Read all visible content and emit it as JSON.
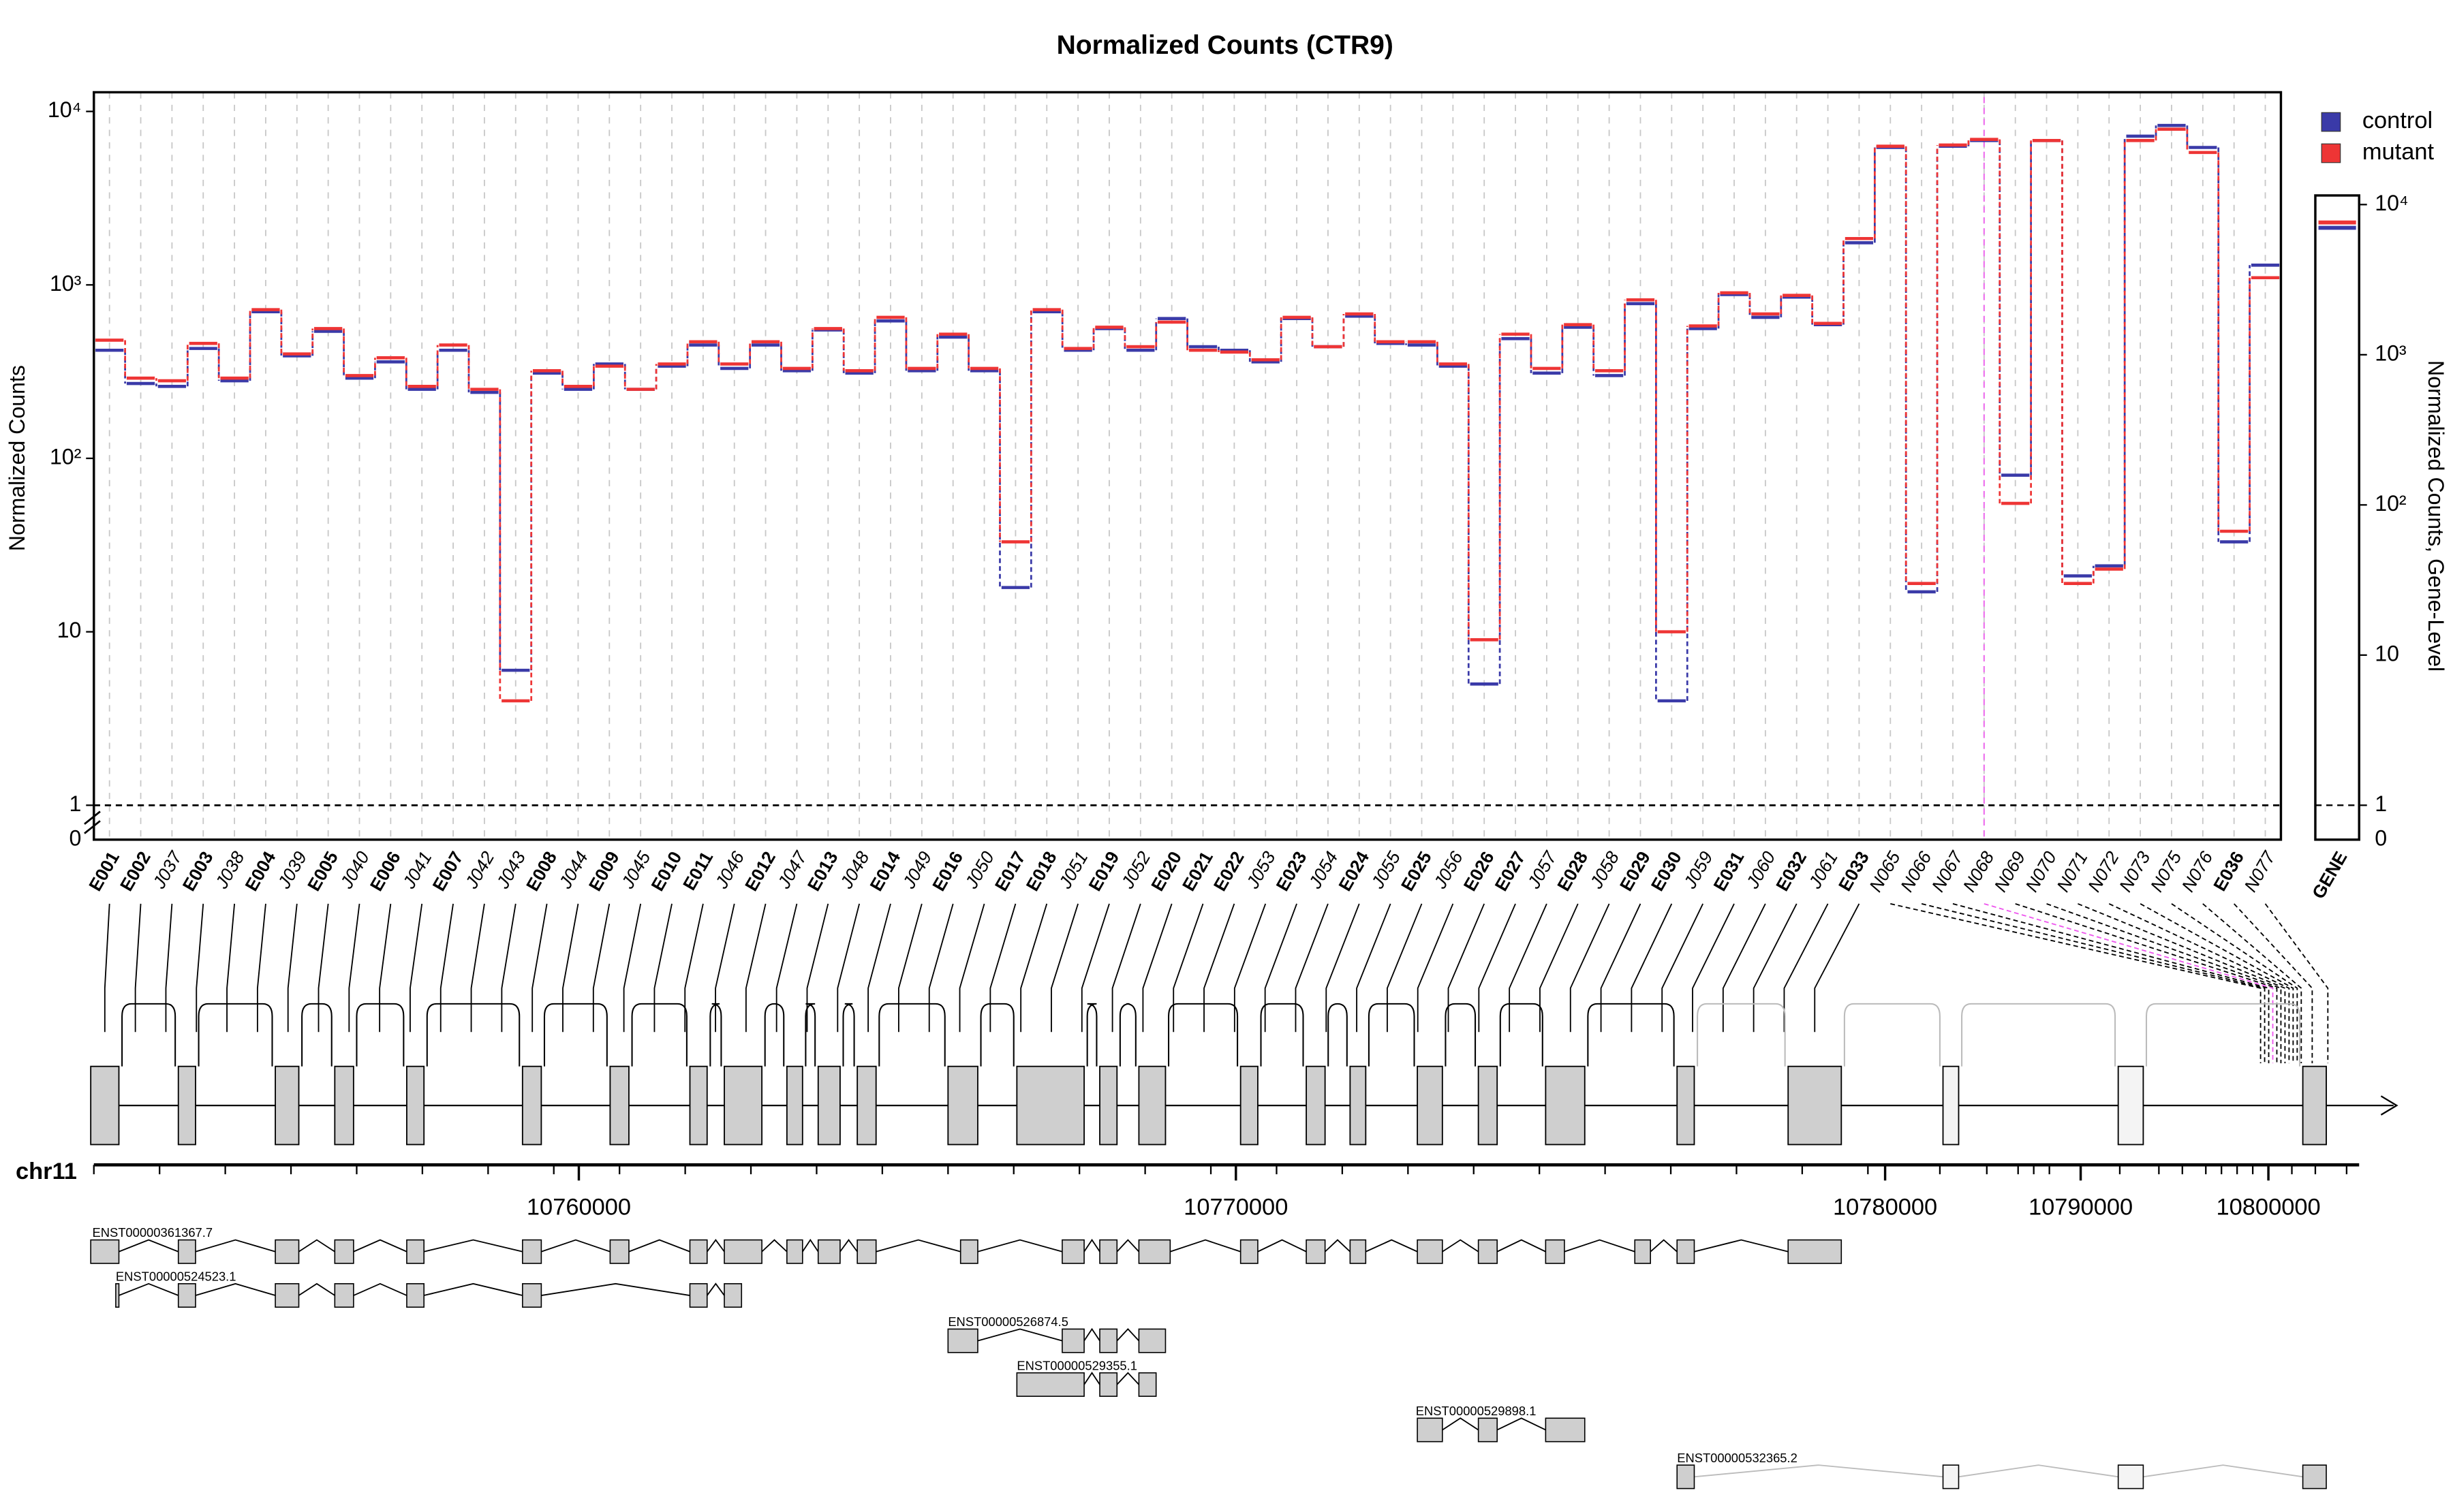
{
  "chart_data": {
    "type": "step",
    "title": "Normalized Counts (CTR9)",
    "y_label": "Normalized Counts",
    "y2_label": "Normalized Counts, Gene-Level",
    "log_scale": true,
    "legend": "top-right",
    "categories": [
      "E001",
      "E002",
      "J037",
      "E003",
      "J038",
      "E004",
      "J039",
      "E005",
      "J040",
      "E006",
      "J041",
      "E007",
      "J042",
      "J043",
      "E008",
      "J044",
      "E009",
      "J045",
      "E010",
      "E011",
      "J046",
      "E012",
      "J047",
      "E013",
      "J048",
      "E014",
      "J049",
      "E016",
      "J050",
      "E017",
      "E018",
      "J051",
      "E019",
      "J052",
      "E020",
      "E021",
      "E022",
      "J053",
      "E023",
      "J054",
      "E024",
      "J055",
      "E025",
      "J056",
      "E026",
      "E027",
      "J057",
      "E028",
      "J058",
      "E029",
      "E030",
      "J059",
      "E031",
      "J060",
      "E032",
      "J061",
      "E033",
      "N065",
      "N066",
      "N067",
      "N068",
      "N069",
      "N070",
      "N071",
      "N072",
      "N073",
      "N075",
      "N076",
      "E036",
      "N077"
    ],
    "gene_category": "GENE",
    "series": [
      {
        "name": "control",
        "color": "#3a3aa8",
        "gene_value": 7000,
        "values": [
          420,
          270,
          260,
          430,
          280,
          700,
          390,
          540,
          290,
          360,
          250,
          420,
          240,
          6,
          310,
          250,
          350,
          250,
          340,
          450,
          330,
          450,
          320,
          550,
          310,
          620,
          320,
          500,
          320,
          18,
          700,
          420,
          560,
          420,
          640,
          440,
          420,
          360,
          640,
          440,
          660,
          460,
          450,
          340,
          5,
          490,
          310,
          570,
          300,
          780,
          4,
          560,
          880,
          650,
          850,
          590,
          1750,
          6200,
          17,
          6300,
          6800,
          80,
          6800,
          21,
          24,
          7200,
          8300,
          6200,
          33,
          1300
        ]
      },
      {
        "name": "mutant",
        "color": "#ee3535",
        "gene_value": 7600,
        "values": [
          480,
          290,
          280,
          460,
          290,
          720,
          400,
          560,
          300,
          380,
          260,
          450,
          250,
          4,
          320,
          260,
          340,
          250,
          350,
          470,
          350,
          470,
          330,
          560,
          320,
          650,
          330,
          520,
          330,
          33,
          720,
          430,
          570,
          440,
          610,
          420,
          410,
          370,
          650,
          440,
          680,
          470,
          470,
          350,
          9,
          520,
          330,
          590,
          320,
          820,
          10,
          580,
          900,
          680,
          870,
          600,
          1850,
          6300,
          19,
          6400,
          6900,
          55,
          6800,
          19,
          23,
          6800,
          7900,
          5800,
          38,
          1100
        ]
      }
    ],
    "ylim": [
      1,
      12900
    ],
    "yticks": [
      1,
      10,
      {
        "value": 100,
        "label": "10²"
      },
      {
        "value": 1000,
        "label": "10³"
      },
      {
        "value": 10000,
        "label": "10⁴"
      }
    ],
    "y2lim": [
      1,
      11500
    ],
    "y2ticks": [
      1,
      10,
      {
        "value": 100,
        "label": "10²"
      },
      {
        "value": 1000,
        "label": "10³"
      },
      {
        "value": 10000,
        "label": "10⁴"
      }
    ],
    "break_label": "0",
    "grid": true
  },
  "gene_model": {
    "chromosome": "chr11",
    "genomic_ticks": [
      10760000,
      10770000,
      10780000,
      10790000,
      10800000
    ],
    "transcripts": [
      "ENST00000361367.7",
      "ENST00000524523.1",
      "ENST00000526874.5",
      "ENST00000529355.1",
      "ENST00000529898.1",
      "ENST00000532365.2"
    ]
  }
}
